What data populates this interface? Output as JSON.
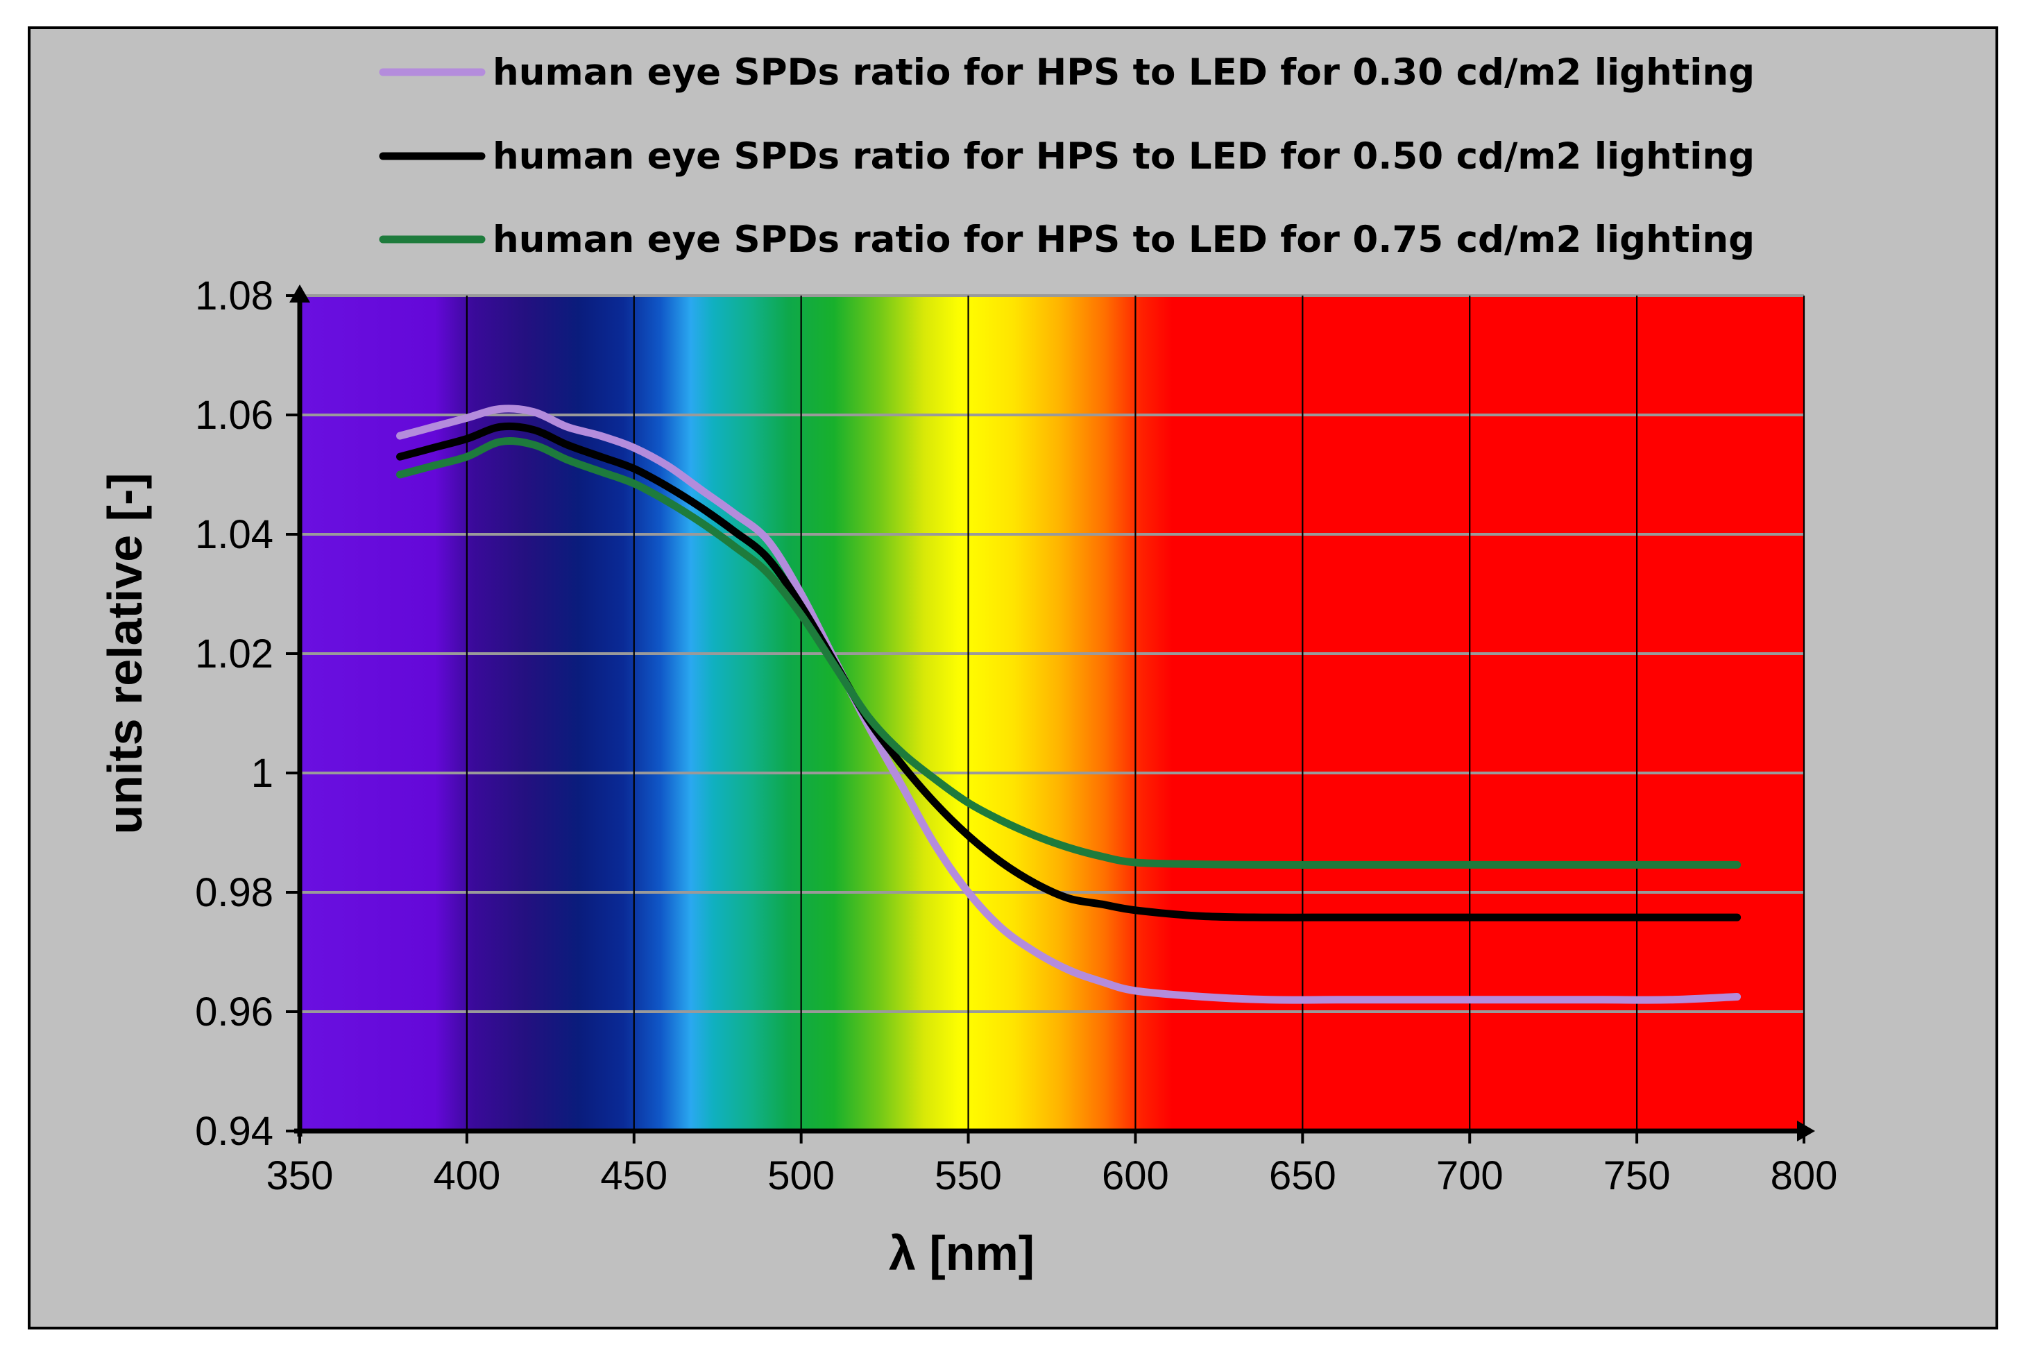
{
  "chart_data": {
    "type": "line",
    "xlabel": "λ [nm]",
    "ylabel": "units relative [-]",
    "xlim": [
      350,
      800
    ],
    "ylim": [
      0.94,
      1.08
    ],
    "xticks": [
      350,
      400,
      450,
      500,
      550,
      600,
      650,
      700,
      750,
      800
    ],
    "yticks": [
      0.94,
      0.96,
      0.98,
      1,
      1.02,
      1.04,
      1.06,
      1.08
    ],
    "ytick_labels": [
      "0.94",
      "0.96",
      "0.98",
      "1",
      "1.02",
      "1.04",
      "1.06",
      "1.08"
    ],
    "grid": true,
    "legend_position": "top",
    "background": "visible light spectrum",
    "x": [
      380,
      390,
      400,
      410,
      420,
      430,
      440,
      450,
      460,
      470,
      480,
      490,
      500,
      510,
      520,
      530,
      540,
      550,
      560,
      570,
      580,
      590,
      600,
      620,
      640,
      660,
      680,
      700,
      720,
      740,
      760,
      780
    ],
    "series": [
      {
        "name": "human eye SPDs ratio for HPS to LED for 0.30 cd/m2 lighting",
        "color": "#b48cdc",
        "values": [
          1.0565,
          1.058,
          1.0595,
          1.061,
          1.0605,
          1.058,
          1.0565,
          1.0545,
          1.0515,
          1.0475,
          1.0435,
          1.039,
          1.03,
          1.019,
          1.008,
          0.998,
          0.988,
          0.98,
          0.974,
          0.97,
          0.967,
          0.965,
          0.9635,
          0.9625,
          0.962,
          0.962,
          0.962,
          0.962,
          0.962,
          0.962,
          0.962,
          0.9625
        ]
      },
      {
        "name": "human eye SPDs ratio for HPS to LED for 0.50 cd/m2 lighting",
        "color": "#000000",
        "values": [
          1.053,
          1.0545,
          1.056,
          1.058,
          1.0575,
          1.055,
          1.053,
          1.051,
          1.048,
          1.0445,
          1.0405,
          1.036,
          1.028,
          1.0185,
          1.009,
          1.0015,
          0.995,
          0.9895,
          0.985,
          0.9815,
          0.979,
          0.978,
          0.977,
          0.976,
          0.9758,
          0.9758,
          0.9758,
          0.9758,
          0.9758,
          0.9758,
          0.9758,
          0.9758
        ]
      },
      {
        "name": "human eye SPDs ratio for HPS to LED for 0.75 cd/m2 lighting",
        "color": "#1e7b3c",
        "values": [
          1.05,
          1.0515,
          1.053,
          1.0555,
          1.055,
          1.0525,
          1.0505,
          1.0485,
          1.0455,
          1.042,
          1.038,
          1.0335,
          1.0265,
          1.018,
          1.0095,
          1.0035,
          0.999,
          0.995,
          0.992,
          0.9895,
          0.9875,
          0.986,
          0.985,
          0.9847,
          0.9846,
          0.9846,
          0.9846,
          0.9846,
          0.9846,
          0.9846,
          0.9846,
          0.9846
        ]
      }
    ]
  }
}
